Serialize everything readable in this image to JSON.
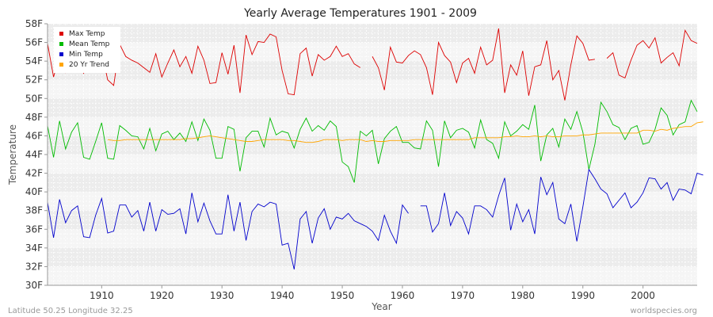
{
  "chart_data": {
    "type": "line",
    "title": "Yearly Average Temperatures 1901 - 2009",
    "xlabel": "Year",
    "ylabel": "Temperature",
    "xlim": [
      1901,
      2009
    ],
    "ylim": [
      30,
      58
    ],
    "x_ticks": [
      1910,
      1920,
      1930,
      1940,
      1950,
      1960,
      1970,
      1980,
      1990,
      2000
    ],
    "y_ticks": [
      {
        "value": 30,
        "label": "30F"
      },
      {
        "value": 32,
        "label": "32F"
      },
      {
        "value": 34,
        "label": "34F"
      },
      {
        "value": 36,
        "label": "36F"
      },
      {
        "value": 38,
        "label": "38F"
      },
      {
        "value": 40,
        "label": "40F"
      },
      {
        "value": 42,
        "label": "42F"
      },
      {
        "value": 44,
        "label": "44F"
      },
      {
        "value": 46,
        "label": "46F"
      },
      {
        "value": 48,
        "label": "48F"
      },
      {
        "value": 50,
        "label": "50F"
      },
      {
        "value": 52,
        "label": "52F"
      },
      {
        "value": 54,
        "label": "54F"
      },
      {
        "value": 56,
        "label": "56F"
      },
      {
        "value": 58,
        "label": "58F"
      }
    ],
    "grid": true,
    "legend_position": "top-left",
    "series": [
      {
        "name": "Max Temp",
        "color": "#dd0000",
        "start_year": 1901,
        "values": [
          55.9,
          52.3,
          54.6,
          52.8,
          54.3,
          54.1,
          52.7,
          54.0,
          54.6,
          55.0,
          52.0,
          51.4,
          55.8,
          54.5,
          54.1,
          53.8,
          53.3,
          52.8,
          54.8,
          52.3,
          53.8,
          55.2,
          53.4,
          54.5,
          52.7,
          55.6,
          54.1,
          51.6,
          51.7,
          54.9,
          52.6,
          55.7,
          50.6,
          56.8,
          54.7,
          56.1,
          56.0,
          56.9,
          56.6,
          53.0,
          50.5,
          50.4,
          54.8,
          55.4,
          52.4,
          54.7,
          54.1,
          54.5,
          55.6,
          54.5,
          54.8,
          53.7,
          53.3,
          null,
          54.5,
          53.3,
          50.9,
          55.5,
          53.9,
          53.8,
          54.6,
          55.1,
          54.7,
          53.3,
          50.4,
          56.0,
          54.6,
          53.9,
          51.7,
          53.8,
          54.3,
          52.7,
          55.5,
          53.6,
          54.1,
          57.5,
          50.6,
          53.6,
          52.5,
          55.1,
          50.3,
          53.4,
          53.6,
          56.2,
          52.0,
          53.0,
          49.8,
          53.6,
          56.7,
          55.9,
          54.1,
          54.2,
          null,
          54.3,
          54.9,
          52.5,
          52.2,
          54.1,
          55.7,
          56.2,
          55.4,
          56.5,
          53.8,
          54.4,
          54.9,
          53.5,
          57.3,
          56.2,
          55.9
        ]
      },
      {
        "name": "Mean Temp",
        "color": "#00bb00",
        "start_year": 1901,
        "values": [
          47.1,
          43.7,
          47.6,
          44.6,
          46.4,
          47.4,
          43.7,
          43.5,
          45.4,
          47.4,
          43.6,
          43.5,
          47.1,
          46.6,
          46.0,
          45.9,
          44.6,
          46.8,
          44.4,
          46.2,
          46.5,
          45.6,
          46.3,
          45.4,
          47.5,
          45.5,
          47.8,
          46.6,
          43.6,
          43.6,
          47.0,
          46.7,
          42.2,
          45.8,
          46.5,
          46.5,
          44.8,
          47.9,
          46.1,
          46.5,
          46.3,
          44.7,
          46.7,
          47.9,
          46.5,
          47.1,
          46.6,
          47.6,
          47.0,
          43.2,
          42.7,
          41.0,
          46.5,
          46.0,
          46.6,
          43.0,
          45.7,
          46.5,
          47.0,
          45.3,
          45.3,
          44.7,
          44.6,
          47.6,
          46.6,
          42.7,
          47.6,
          45.8,
          46.6,
          46.8,
          46.4,
          44.7,
          47.7,
          45.6,
          45.2,
          43.6,
          47.5,
          46.0,
          46.5,
          47.2,
          46.7,
          49.3,
          43.3,
          46.1,
          46.8,
          44.8,
          47.8,
          46.7,
          48.6,
          46.4,
          42.4,
          45.1,
          49.6,
          48.6,
          47.2,
          46.9,
          45.6,
          46.8,
          47.1,
          45.1,
          45.3,
          46.7,
          49.0,
          48.2,
          46.1,
          47.2,
          47.5,
          49.8,
          48.6
        ]
      },
      {
        "name": "Min Temp",
        "color": "#0000cc",
        "start_year": 1901,
        "values": [
          38.9,
          35.1,
          39.2,
          36.7,
          38.0,
          38.5,
          35.2,
          35.1,
          37.5,
          39.3,
          35.6,
          35.8,
          38.6,
          38.6,
          37.3,
          38.0,
          35.8,
          38.9,
          35.8,
          38.1,
          37.6,
          37.7,
          38.2,
          35.5,
          39.9,
          36.8,
          38.8,
          36.9,
          35.5,
          35.5,
          39.7,
          35.8,
          38.9,
          34.8,
          37.9,
          38.7,
          38.4,
          38.9,
          38.7,
          34.3,
          34.5,
          31.7,
          37.1,
          37.9,
          34.5,
          37.2,
          38.2,
          36.0,
          37.3,
          37.1,
          37.7,
          36.9,
          36.6,
          36.3,
          35.8,
          34.8,
          37.5,
          35.8,
          34.5,
          38.6,
          37.7,
          null,
          38.5,
          38.5,
          35.7,
          36.6,
          39.9,
          36.4,
          37.9,
          37.2,
          35.5,
          38.5,
          38.5,
          38.1,
          37.3,
          39.6,
          41.5,
          35.9,
          38.7,
          36.8,
          38.1,
          35.5,
          41.6,
          39.7,
          41.0,
          37.1,
          36.6,
          38.7,
          34.7,
          38.4,
          42.4,
          41.4,
          40.3,
          39.8,
          38.3,
          39.1,
          39.9,
          38.3,
          38.9,
          39.9,
          41.5,
          41.4,
          40.3,
          41.0,
          39.1,
          40.3,
          40.2,
          39.8,
          42.0,
          41.8
        ]
      },
      {
        "name": "20 Yr Trend",
        "color": "#ffa500",
        "start_year": 1911,
        "values": [
          45.6,
          45.5,
          45.5,
          45.6,
          45.6,
          45.6,
          45.6,
          45.6,
          45.6,
          45.6,
          45.6,
          45.6,
          45.6,
          45.7,
          45.7,
          45.8,
          45.9,
          46.0,
          45.9,
          45.8,
          45.7,
          45.6,
          45.5,
          45.4,
          45.4,
          45.5,
          45.6,
          45.6,
          45.6,
          45.6,
          45.5,
          45.5,
          45.4,
          45.3,
          45.3,
          45.4,
          45.6,
          45.6,
          45.6,
          45.5,
          45.6,
          45.6,
          45.6,
          45.4,
          45.5,
          45.4,
          45.4,
          45.5,
          45.5,
          45.5,
          45.5,
          45.6,
          45.6,
          45.6,
          45.6,
          45.6,
          45.6,
          45.6,
          45.6,
          45.6,
          45.6,
          45.8,
          45.8,
          45.8,
          45.8,
          45.8,
          45.9,
          45.9,
          46.0,
          45.9,
          45.9,
          46.0,
          45.9,
          46.0,
          45.9,
          45.9,
          46.0,
          46.0,
          46.0,
          46.1,
          46.1,
          46.2,
          46.3,
          46.3,
          46.3,
          46.3,
          46.3,
          46.3,
          46.3,
          46.6,
          46.6,
          46.5,
          46.7,
          46.6,
          46.8,
          46.9,
          47.0,
          47.0,
          47.4,
          47.5
        ]
      }
    ]
  },
  "footer": {
    "location": "Latitude 50.25 Longitude 32.25",
    "source": "worldspecies.org"
  }
}
